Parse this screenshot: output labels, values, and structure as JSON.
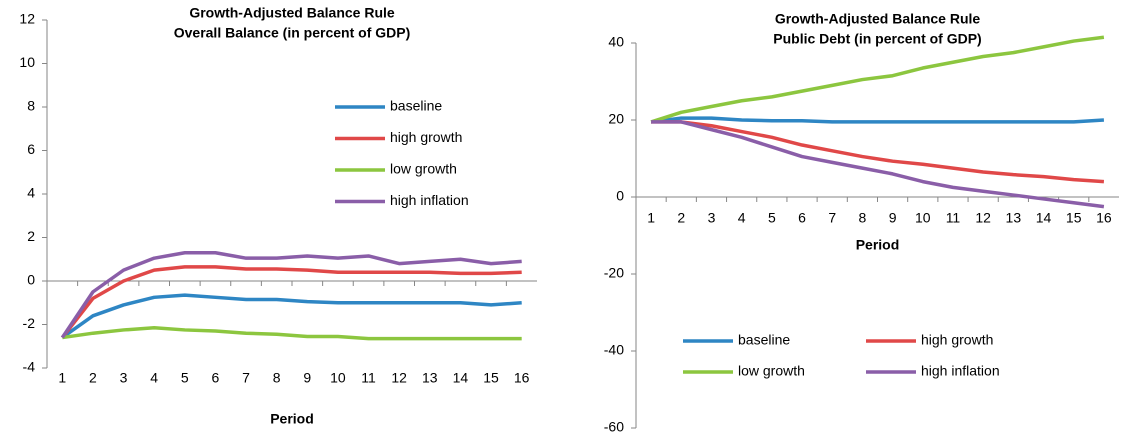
{
  "chart_data": [
    {
      "type": "line",
      "title": "Growth-Adjusted Balance Rule",
      "subtitle": "Overall Balance (in percent of GDP)",
      "x_label": "Period",
      "categories": [
        "1",
        "2",
        "3",
        "4",
        "5",
        "6",
        "7",
        "8",
        "9",
        "10",
        "11",
        "12",
        "13",
        "14",
        "15",
        "16"
      ],
      "ylim": [
        -4,
        12
      ],
      "yticks": [
        -4,
        -2,
        0,
        2,
        4,
        6,
        8,
        10,
        12
      ],
      "grid": false,
      "legend": "right",
      "series": [
        {
          "name": "baseline",
          "color": "#2e86c4",
          "values": [
            -2.6,
            -1.6,
            -1.1,
            -0.75,
            -0.65,
            -0.75,
            -0.85,
            -0.85,
            -0.95,
            -1.0,
            -1.0,
            -1.0,
            -1.0,
            -1.0,
            -1.1,
            -1.0
          ]
        },
        {
          "name": "high growth",
          "color": "#e04848",
          "values": [
            -2.6,
            -0.8,
            0.0,
            0.5,
            0.65,
            0.65,
            0.55,
            0.55,
            0.5,
            0.4,
            0.4,
            0.4,
            0.4,
            0.35,
            0.35,
            0.4
          ]
        },
        {
          "name": "low growth",
          "color": "#8cc63f",
          "values": [
            -2.6,
            -2.4,
            -2.25,
            -2.15,
            -2.25,
            -2.3,
            -2.4,
            -2.45,
            -2.55,
            -2.55,
            -2.65,
            -2.65,
            -2.65,
            -2.65,
            -2.65,
            -2.65
          ]
        },
        {
          "name": "high inflation",
          "color": "#8a5ea8",
          "values": [
            -2.6,
            -0.5,
            0.5,
            1.05,
            1.3,
            1.3,
            1.05,
            1.05,
            1.15,
            1.05,
            1.15,
            0.8,
            0.9,
            1.0,
            0.8,
            0.9
          ]
        }
      ]
    },
    {
      "type": "line",
      "title": "Growth-Adjusted Balance Rule",
      "subtitle": "Public Debt (in percent of GDP)",
      "x_label": "Period",
      "categories": [
        "1",
        "2",
        "3",
        "4",
        "5",
        "6",
        "7",
        "8",
        "9",
        "10",
        "11",
        "12",
        "13",
        "14",
        "15",
        "16"
      ],
      "ylim": [
        -60,
        40
      ],
      "yticks": [
        -60,
        -40,
        -20,
        0,
        20,
        40
      ],
      "grid": false,
      "legend": "bottom",
      "series": [
        {
          "name": "baseline",
          "color": "#2e86c4",
          "values": [
            19.5,
            20.5,
            20.5,
            20,
            19.8,
            19.8,
            19.5,
            19.5,
            19.5,
            19.5,
            19.5,
            19.5,
            19.5,
            19.5,
            19.5,
            20
          ]
        },
        {
          "name": "high growth",
          "color": "#e04848",
          "values": [
            19.5,
            19.5,
            18.5,
            17,
            15.5,
            13.5,
            12,
            10.5,
            9.3,
            8.5,
            7.5,
            6.5,
            5.8,
            5.3,
            4.5,
            4
          ]
        },
        {
          "name": "low growth",
          "color": "#8cc63f",
          "values": [
            19.5,
            22,
            23.5,
            25,
            26,
            27.5,
            29,
            30.5,
            31.5,
            33.5,
            35,
            36.5,
            37.5,
            39,
            40.5,
            41.5
          ]
        },
        {
          "name": "high inflation",
          "color": "#8a5ea8",
          "values": [
            19.5,
            19.5,
            17.5,
            15.5,
            13,
            10.5,
            9,
            7.5,
            6,
            4,
            2.5,
            1.5,
            0.5,
            -0.5,
            -1.5,
            -2.5
          ]
        }
      ]
    }
  ]
}
